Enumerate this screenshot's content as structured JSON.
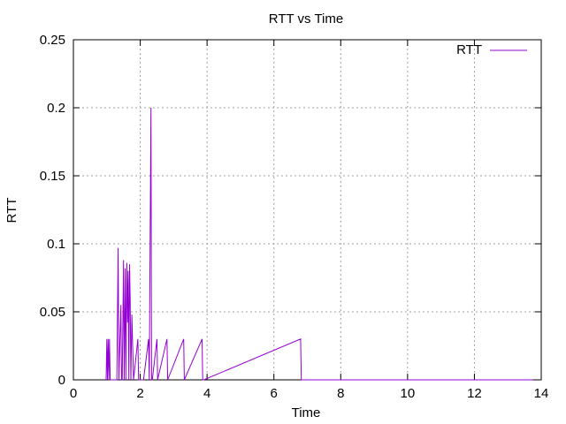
{
  "chart_data": {
    "type": "line",
    "title": "RTT vs Time",
    "xlabel": "Time",
    "ylabel": "RTT",
    "xlim": [
      0,
      14
    ],
    "ylim": [
      0,
      0.25
    ],
    "xticks": [
      0,
      2,
      4,
      6,
      8,
      10,
      12,
      14
    ],
    "yticks": [
      0,
      0.05,
      0.1,
      0.15,
      0.2,
      0.25
    ],
    "xtick_labels": [
      "0",
      "2",
      "4",
      "6",
      "8",
      "10",
      "12",
      "14"
    ],
    "ytick_labels": [
      "0",
      "0.05",
      "0.1",
      "0.15",
      "0.2",
      "0.25"
    ],
    "grid": true,
    "legend_position": "top-right",
    "series": [
      {
        "name": "RTT",
        "color": "#9400d3",
        "x": [
          0.98,
          1.0,
          1.02,
          1.04,
          1.06,
          1.08,
          1.1,
          1.12,
          1.14,
          1.2,
          1.3,
          1.34,
          1.36,
          1.42,
          1.44,
          1.46,
          1.5,
          1.52,
          1.55,
          1.57,
          1.58,
          1.6,
          1.62,
          1.64,
          1.66,
          1.68,
          1.7,
          1.72,
          1.75,
          1.8,
          1.93,
          1.95,
          2.1,
          2.25,
          2.27,
          2.32,
          2.34,
          2.36,
          2.5,
          2.52,
          2.8,
          2.82,
          3.3,
          3.32,
          3.85,
          3.87,
          3.9,
          6.8,
          6.82,
          6.85,
          13.75
        ],
        "y": [
          0,
          0.03,
          0,
          0.03,
          0,
          0.03,
          0,
          0,
          0,
          0,
          0,
          0.097,
          0,
          0.055,
          0,
          0,
          0.088,
          0,
          0.082,
          0,
          0.04,
          0.086,
          0.042,
          0.08,
          0,
          0.085,
          0.059,
          0,
          0.048,
          0,
          0.03,
          0,
          0,
          0.03,
          0,
          0.2,
          0,
          0,
          0.03,
          0,
          0.03,
          0,
          0.03,
          0,
          0.03,
          0,
          0,
          0.03,
          0,
          0,
          0
        ]
      }
    ]
  }
}
